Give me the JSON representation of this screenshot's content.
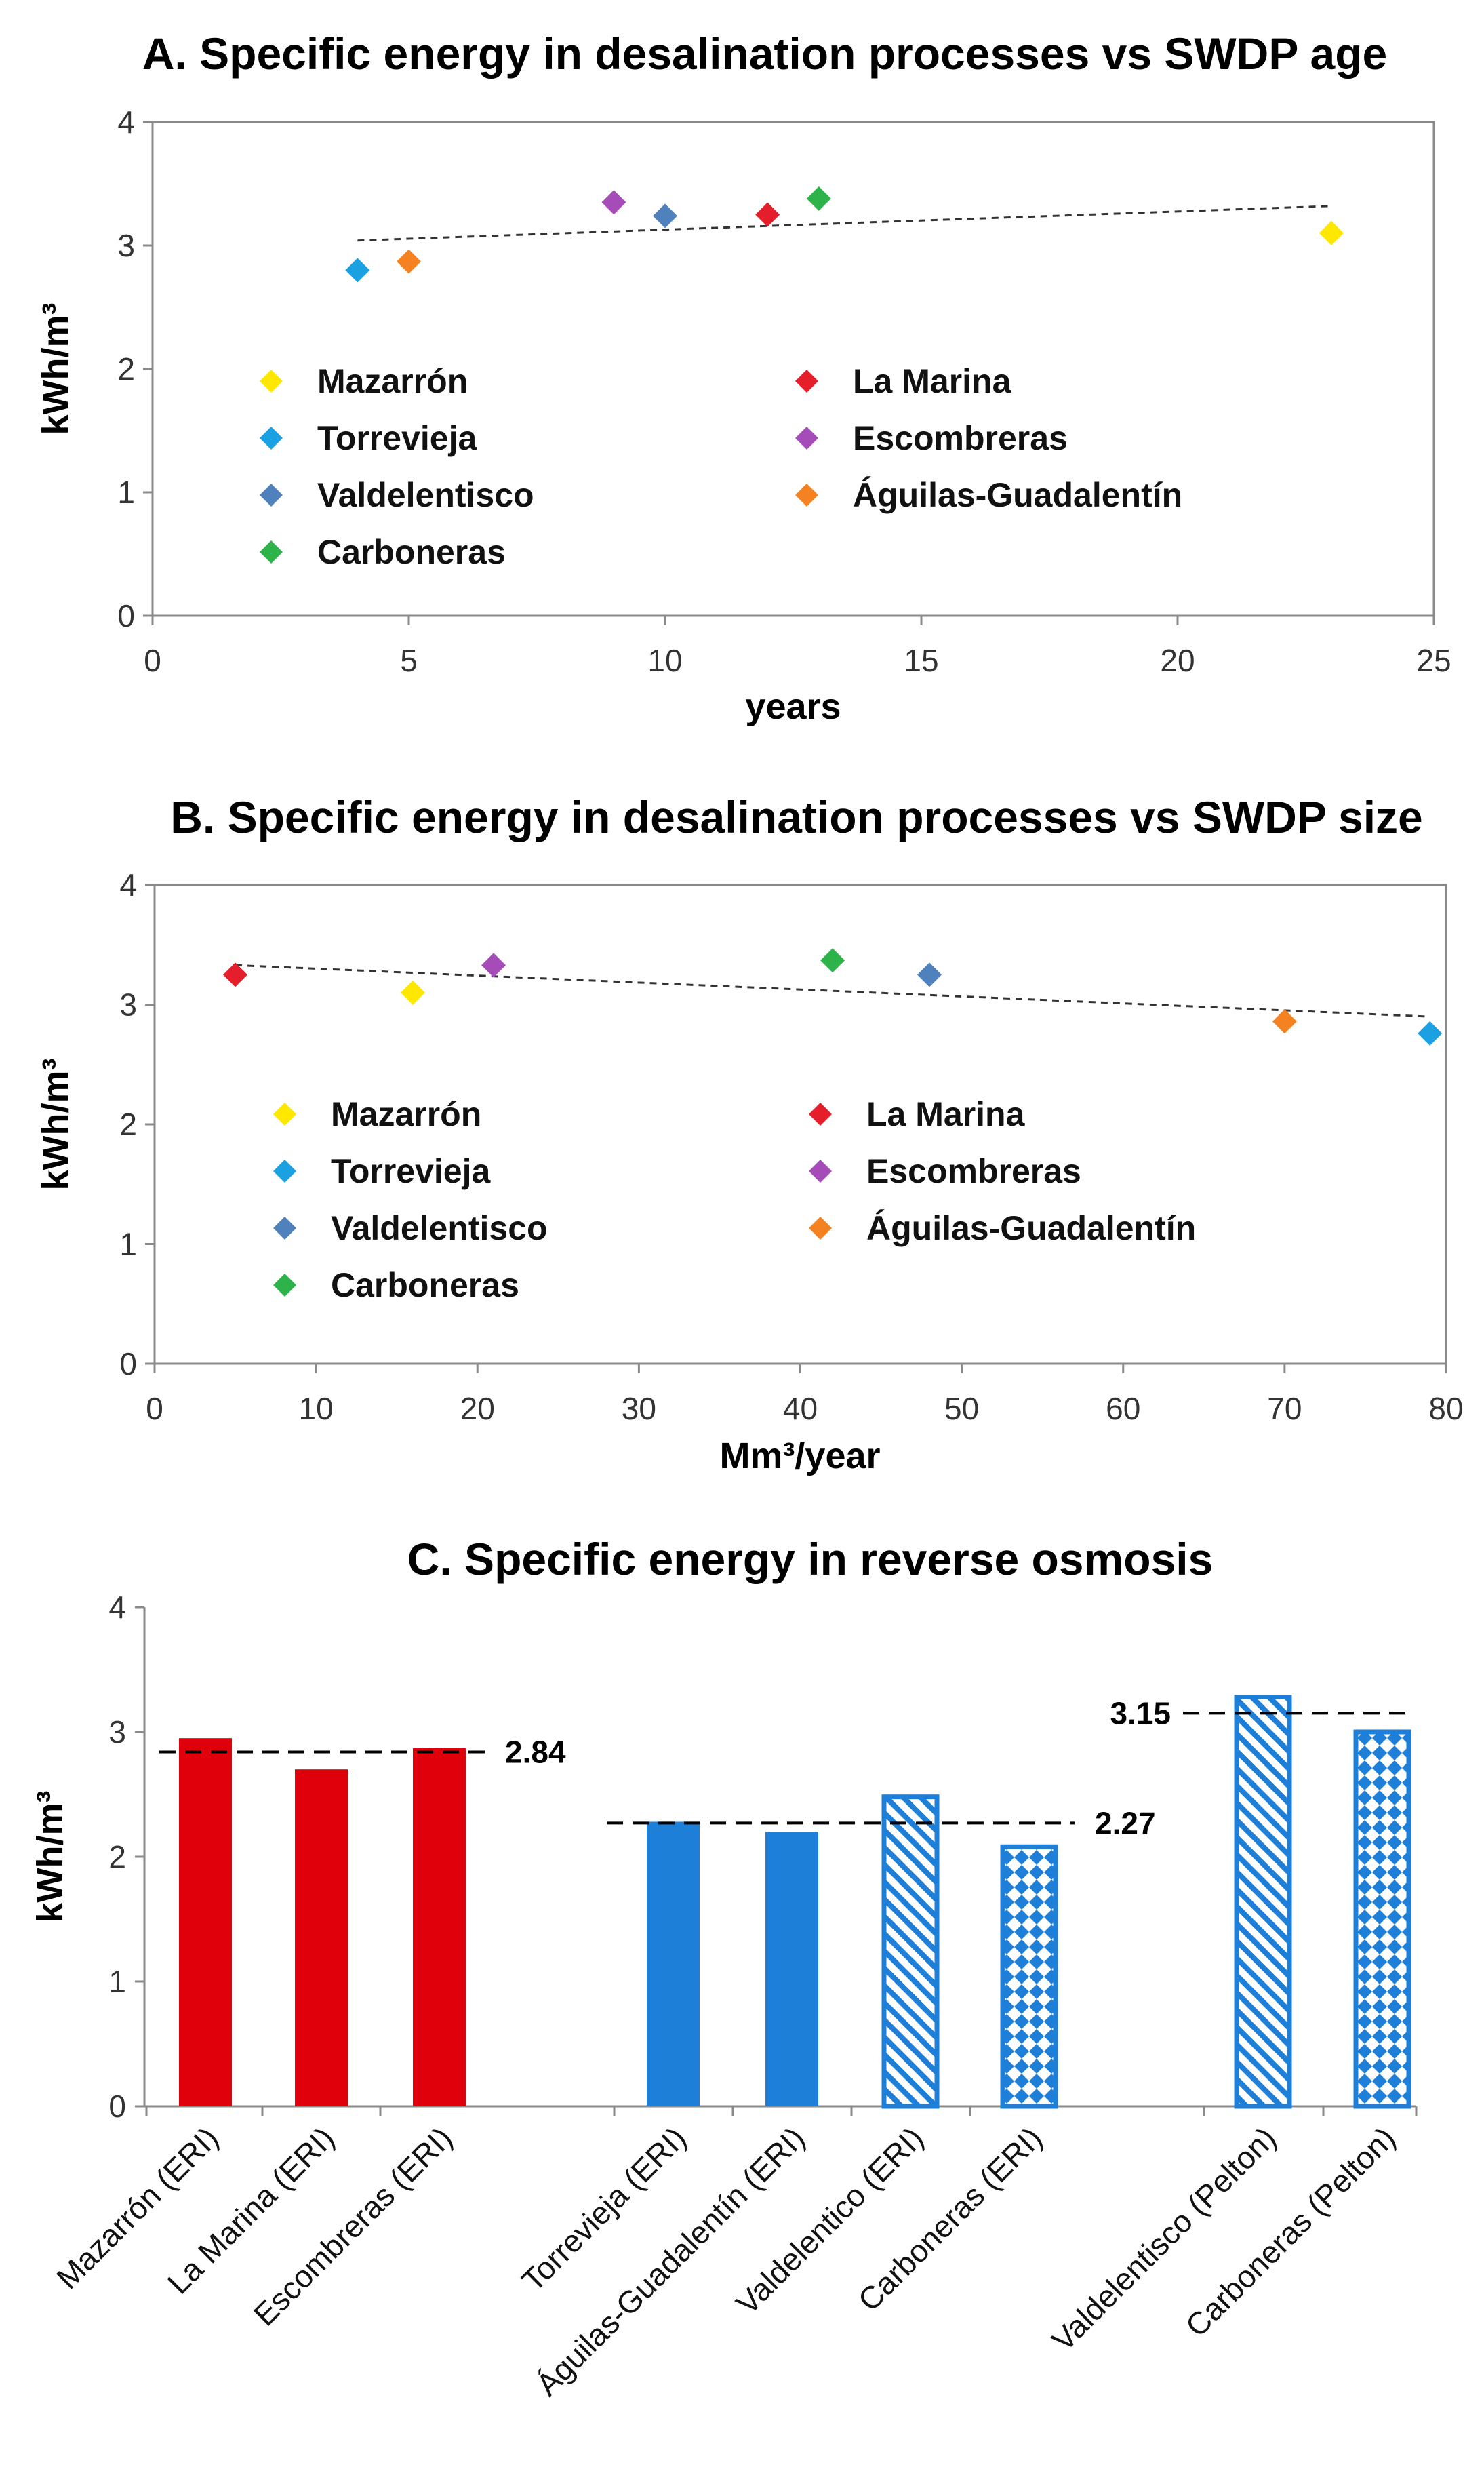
{
  "chart_data": [
    {
      "id": "A",
      "type": "scatter",
      "title": "A. Specific energy in desalination processes vs SWDP age",
      "xlabel": "years",
      "ylabel": "kWh/m³",
      "xlim": [
        0,
        25
      ],
      "ylim": [
        0,
        4
      ],
      "xticks": [
        "0",
        "5",
        "10",
        "15",
        "20",
        "25"
      ],
      "yticks": [
        "0",
        "1",
        "2",
        "3",
        "4"
      ],
      "points": [
        {
          "name": "Mazarrón",
          "x": 23,
          "y": 3.1,
          "color": "#FFE800"
        },
        {
          "name": "Torrevieja",
          "x": 4,
          "y": 2.8,
          "color": "#1BA1E2"
        },
        {
          "name": "Valdelentisco",
          "x": 10,
          "y": 3.24,
          "color": "#4F81BD"
        },
        {
          "name": "Carboneras",
          "x": 13,
          "y": 3.38,
          "color": "#2DB34A"
        },
        {
          "name": "La Marina",
          "x": 12,
          "y": 3.25,
          "color": "#E41E2A"
        },
        {
          "name": "Escombreras",
          "x": 9,
          "y": 3.35,
          "color": "#A64CB8"
        },
        {
          "name": "Águilas-Guadalentín",
          "x": 5,
          "y": 2.87,
          "color": "#F58220"
        }
      ],
      "trendline": {
        "x": [
          4,
          23
        ],
        "y": [
          3.04,
          3.32
        ]
      },
      "legend_left": [
        "Mazarrón",
        "Torrevieja",
        "Valdelentisco",
        "Carboneras"
      ],
      "legend_right": [
        "La Marina",
        "Escombreras",
        "Águilas-Guadalentín"
      ]
    },
    {
      "id": "B",
      "type": "scatter",
      "title": "B. Specific energy in desalination processes vs SWDP size",
      "xlabel": "Mm³/year",
      "ylabel": "kWh/m³",
      "xlim": [
        0,
        80
      ],
      "ylim": [
        0,
        4
      ],
      "xticks": [
        "0",
        "10",
        "20",
        "30",
        "40",
        "50",
        "60",
        "70",
        "80"
      ],
      "yticks": [
        "0",
        "1",
        "2",
        "3",
        "4"
      ],
      "points": [
        {
          "name": "Mazarrón",
          "x": 16,
          "y": 3.1,
          "color": "#FFE800"
        },
        {
          "name": "Torrevieja",
          "x": 79,
          "y": 2.76,
          "color": "#1BA1E2"
        },
        {
          "name": "Valdelentisco",
          "x": 48,
          "y": 3.25,
          "color": "#4F81BD"
        },
        {
          "name": "Carboneras",
          "x": 42,
          "y": 3.37,
          "color": "#2DB34A"
        },
        {
          "name": "La Marina",
          "x": 5,
          "y": 3.25,
          "color": "#E41E2A"
        },
        {
          "name": "Escombreras",
          "x": 21,
          "y": 3.33,
          "color": "#A64CB8"
        },
        {
          "name": "Águilas-Guadalentín",
          "x": 70,
          "y": 2.86,
          "color": "#F58220"
        }
      ],
      "trendline": {
        "x": [
          5,
          79
        ],
        "y": [
          3.33,
          2.9
        ]
      },
      "legend_left": [
        "Mazarrón",
        "Torrevieja",
        "Valdelentisco",
        "Carboneras"
      ],
      "legend_right": [
        "La Marina",
        "Escombreras",
        "Águilas-Guadalentín"
      ]
    },
    {
      "id": "C",
      "type": "bar",
      "title": "C. Specific energy in reverse osmosis",
      "ylabel": "kWh/m³",
      "ylim": [
        0,
        4
      ],
      "yticks": [
        "0",
        "1",
        "2",
        "3",
        "4"
      ],
      "bars": [
        {
          "label": "Mazarrón (ERI)",
          "value": 2.95,
          "group": 0,
          "style": "solid-red"
        },
        {
          "label": "La Marina (ERI)",
          "value": 2.7,
          "group": 0,
          "style": "solid-red"
        },
        {
          "label": "Escombreras (ERI)",
          "value": 2.87,
          "group": 0,
          "style": "solid-red"
        },
        {
          "label": "Torrevieja (ERI)",
          "value": 2.28,
          "group": 1,
          "style": "solid-blue"
        },
        {
          "label": "Águilas-Guadalentín (ERI)",
          "value": 2.2,
          "group": 1,
          "style": "solid-blue"
        },
        {
          "label": "Valdelentico (ERI)",
          "value": 2.48,
          "group": 1,
          "style": "hatch-blue"
        },
        {
          "label": "Carboneras (ERI)",
          "value": 2.08,
          "group": 1,
          "style": "check-blue"
        },
        {
          "label": "Valdelentisco (Pelton)",
          "value": 3.28,
          "group": 2,
          "style": "hatch-blue"
        },
        {
          "label": "Carboneras (Pelton)",
          "value": 3.0,
          "group": 2,
          "style": "check-blue"
        }
      ],
      "reference_lines": [
        {
          "value": 2.84,
          "label": "2.84",
          "group": 0
        },
        {
          "value": 2.27,
          "label": "2.27",
          "group": 1
        },
        {
          "value": 3.15,
          "label": "3.15",
          "group": 2
        }
      ]
    }
  ]
}
